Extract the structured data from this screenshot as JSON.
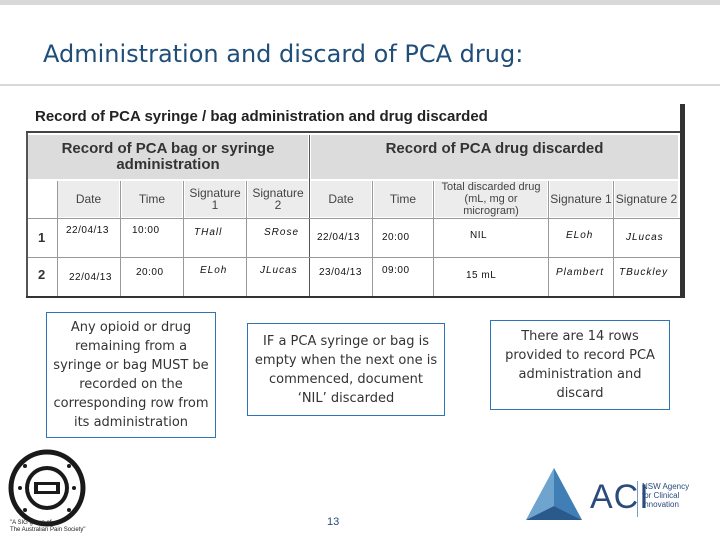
{
  "slide": {
    "title": "Administration and discard of PCA drug:",
    "page_number": "13"
  },
  "form": {
    "title": "Record of PCA syringe / bag administration and drug discarded",
    "section_admin": "Record of PCA bag or syringe administration",
    "section_discard": "Record of PCA drug discarded",
    "columns": {
      "date": "Date",
      "time": "Time",
      "sig1": "Signature 1",
      "sig2": "Signature 2",
      "date2": "Date",
      "time2": "Time",
      "total": "Total discarded drug (mL, mg or microgram)",
      "sig1b": "Signature 1",
      "sig2b": "Signature 2"
    },
    "rows": [
      {
        "num": "1",
        "date": "22/04/13",
        "time": "10:00",
        "sig1": "THall",
        "sig2": "SRose",
        "date2": "22/04/13",
        "time2": "20:00",
        "total": "NIL",
        "sig1b": "ELoh",
        "sig2b": "JLucas"
      },
      {
        "num": "2",
        "date": "22/04/13",
        "time": "20:00",
        "sig1": "ELoh",
        "sig2": "JLucas",
        "date2": "23/04/13",
        "time2": "09:00",
        "total": "15 mL",
        "sig1b": "Plambert",
        "sig2b": "TBuckley"
      }
    ]
  },
  "callouts": {
    "left": "Any opioid or drug remaining from a syringe or bag MUST be recorded on the corresponding row from its administration",
    "middle": "IF a PCA syringe or bag is empty when the next one is commenced, document ‘NIL’ discarded",
    "right": "There are 14 rows provided to record PCA administration and discard"
  },
  "logos": {
    "pig_caption_1": "\"A SIG group of",
    "pig_caption_2": "The Australian Pain Society\"",
    "aci_word": "ACI",
    "aci_sub_1": "NSW Agency",
    "aci_sub_2": "for Clinical",
    "aci_sub_3": "Innovation"
  },
  "colors": {
    "title": "#1f4e79",
    "callout_border": "#2e75b6",
    "aci_blue": "#2a4b7c"
  }
}
